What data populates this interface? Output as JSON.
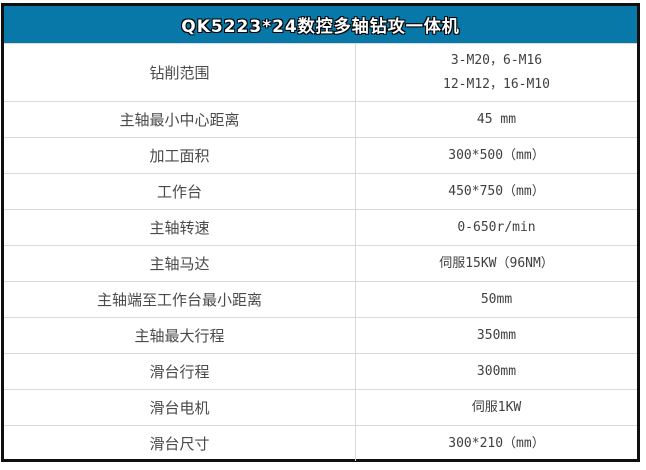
{
  "header": {
    "title": "QK5223*24数控多轴钻攻一体机"
  },
  "colors": {
    "header_bg": "#0878a8",
    "outer_border": "#0f0f0f",
    "grid_line": "#d9d9d9",
    "label_text": "#4a4a4a",
    "value_text": "#404040"
  },
  "table": {
    "rows": [
      {
        "label": "钻削范围",
        "value_lines": [
          "3-M20，6-M16",
          "12-M12，16-M10"
        ]
      },
      {
        "label": "主轴最小中心距离",
        "value_lines": [
          "45 mm"
        ]
      },
      {
        "label": "加工面积",
        "value_lines": [
          "300*500（mm）"
        ]
      },
      {
        "label": "工作台",
        "value_lines": [
          "450*750（mm）"
        ]
      },
      {
        "label": "主轴转速",
        "value_lines": [
          "0-650r/min"
        ]
      },
      {
        "label": "主轴马达",
        "value_lines": [
          "伺服15KW（96NM）"
        ]
      },
      {
        "label": "主轴端至工作台最小距离",
        "value_lines": [
          "50mm"
        ]
      },
      {
        "label": "主轴最大行程",
        "value_lines": [
          "350mm"
        ]
      },
      {
        "label": "滑台行程",
        "value_lines": [
          "300mm"
        ]
      },
      {
        "label": "滑台电机",
        "value_lines": [
          "伺服1KW"
        ]
      },
      {
        "label": "滑台尺寸",
        "value_lines": [
          "300*210（mm）"
        ]
      }
    ]
  }
}
